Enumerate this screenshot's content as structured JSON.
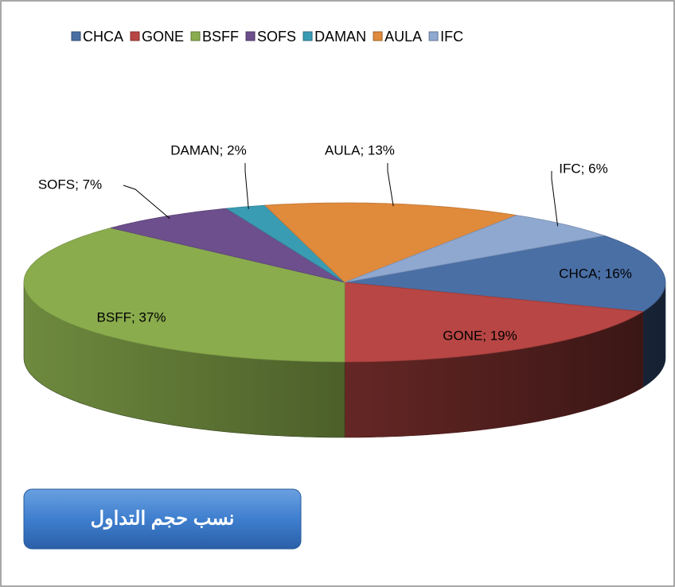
{
  "chart_data": {
    "type": "pie3d",
    "title": "نسب حجم التداول",
    "categories": [
      "CHCA",
      "GONE",
      "BSFF",
      "SOFS",
      "DAMAN",
      "AULA",
      "IFC"
    ],
    "values": [
      16,
      19,
      37,
      7,
      2,
      13,
      6
    ],
    "value_labels": [
      "CHCA; 16%",
      "GONE; 19%",
      "BSFF; 37%",
      "SOFS; 7%",
      "DAMAN; 2%",
      "AULA; 13%",
      "IFC; 6%"
    ],
    "colors": [
      "#4a6fa5",
      "#b84644",
      "#8aac4d",
      "#6c4f8c",
      "#3a9cb3",
      "#e08a3c",
      "#8fa8d0"
    ],
    "legend": "top"
  }
}
